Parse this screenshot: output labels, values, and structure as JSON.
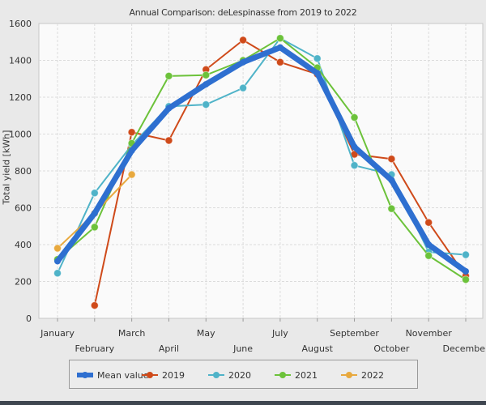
{
  "chart_data": {
    "type": "line",
    "title": "Annual Comparison: deLespinasse from 2019 to 2022",
    "xlabel": "",
    "ylabel": "Total yield [kWh]",
    "ylim": [
      0,
      1600
    ],
    "yticks": [
      "0",
      "200",
      "400",
      "600",
      "800",
      "1000",
      "1200",
      "1400",
      "1600"
    ],
    "ytick_values": [
      0,
      200,
      400,
      600,
      800,
      1000,
      1200,
      1400,
      1600
    ],
    "categories": [
      "January",
      "February",
      "March",
      "April",
      "May",
      "June",
      "July",
      "August",
      "September",
      "October",
      "November",
      "December"
    ],
    "grid": true,
    "legend_position": "bottom",
    "series": [
      {
        "name": "Mean value",
        "color": "#2e6fd0",
        "values": [
          310,
          570,
          910,
          1140,
          1270,
          1390,
          1470,
          1330,
          930,
          750,
          400,
          255
        ]
      },
      {
        "name": "2019",
        "color": "#cf4a1a",
        "values": [
          null,
          70,
          1010,
          965,
          1350,
          1510,
          1390,
          1325,
          890,
          865,
          520,
          230
        ]
      },
      {
        "name": "2020",
        "color": "#4fb3c8",
        "values": [
          245,
          680,
          940,
          1150,
          1160,
          1250,
          1520,
          1410,
          830,
          780,
          360,
          345
        ]
      },
      {
        "name": "2021",
        "color": "#6cc23a",
        "values": [
          320,
          495,
          950,
          1315,
          1320,
          1400,
          1520,
          1360,
          1090,
          595,
          340,
          210
        ]
      },
      {
        "name": "2022",
        "color": "#e8a93e",
        "values": [
          380,
          570,
          780,
          null,
          null,
          null,
          null,
          null,
          null,
          null,
          null,
          null
        ]
      }
    ]
  }
}
